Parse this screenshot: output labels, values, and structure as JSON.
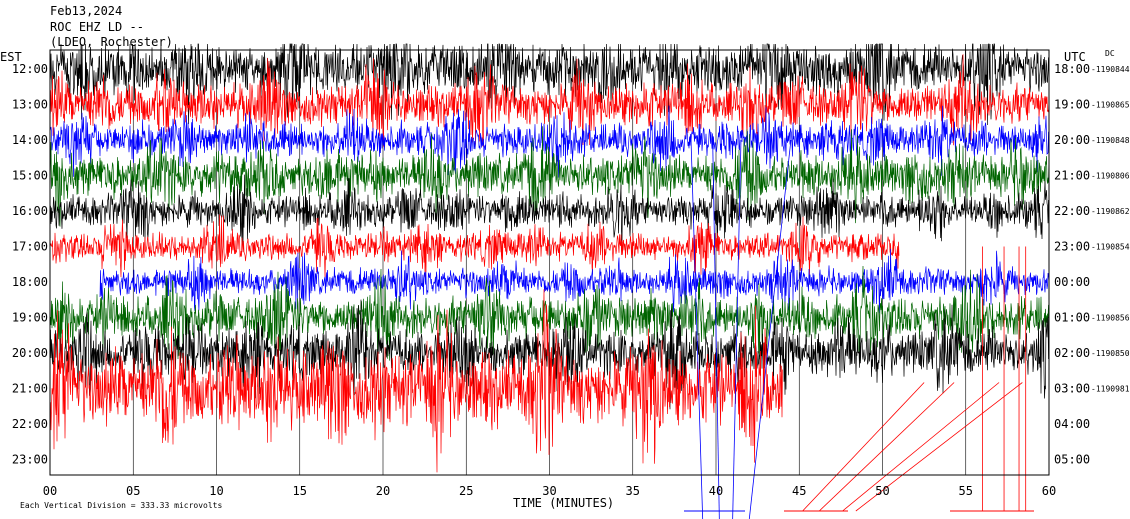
{
  "header": {
    "date": "Feb13,2024",
    "channel": "ROC EHZ LD --",
    "network": "(LDEO, Rochester)"
  },
  "chart_data": {
    "type": "helicorder",
    "xlabel": "TIME (MINUTES)",
    "left_axis_title": "EST",
    "right_axis_title": "UTC",
    "dc_label": "DC",
    "footnote": "Each Vertical Division =  333.33 microvolts",
    "x_ticks": [
      "00",
      "05",
      "10",
      "15",
      "20",
      "25",
      "30",
      "35",
      "40",
      "45",
      "50",
      "55",
      "60"
    ],
    "xlim": [
      0,
      60
    ],
    "trace_colors": [
      "#000000",
      "#ff0000",
      "#0000ff",
      "#006400"
    ],
    "rows": [
      {
        "est": "12:00",
        "utc": "18:00",
        "dc": "-1190844",
        "color": "#000000",
        "start": 0,
        "end": 60,
        "amp": 0.55
      },
      {
        "est": "13:00",
        "utc": "19:00",
        "dc": "-1190865",
        "color": "#ff0000",
        "start": 0,
        "end": 60,
        "amp": 0.45
      },
      {
        "est": "14:00",
        "utc": "20:00",
        "dc": "-1190848",
        "color": "#0000ff",
        "start": 0,
        "end": 60,
        "amp": 0.35
      },
      {
        "est": "15:00",
        "utc": "21:00",
        "dc": "-1190806",
        "color": "#006400",
        "start": 0,
        "end": 60,
        "amp": 0.45
      },
      {
        "est": "16:00",
        "utc": "22:00",
        "dc": "-1190862",
        "color": "#000000",
        "start": 0,
        "end": 60,
        "amp": 0.35
      },
      {
        "est": "17:00",
        "utc": "23:00",
        "dc": "-1190854",
        "color": "#ff0000",
        "start": 0,
        "end": 51,
        "amp": 0.3
      },
      {
        "est": "18:00",
        "utc": "00:00",
        "dc": "",
        "color": "#0000ff",
        "start": 3,
        "end": 60,
        "amp": 0.3
      },
      {
        "est": "19:00",
        "utc": "01:00",
        "dc": "-1190856",
        "color": "#006400",
        "start": 0,
        "end": 60,
        "amp": 0.45
      },
      {
        "est": "20:00",
        "utc": "02:00",
        "dc": "-1190850",
        "color": "#000000",
        "start": 0,
        "end": 60,
        "amp": 0.5
      },
      {
        "est": "21:00",
        "utc": "03:00",
        "dc": "-1190981",
        "color": "#ff0000",
        "start": 0,
        "end": 44,
        "amp": 0.8
      },
      {
        "est": "22:00",
        "utc": "04:00",
        "dc": "",
        "color": "#000000",
        "start": 0,
        "end": 0,
        "amp": 0
      },
      {
        "est": "23:00",
        "utc": "05:00",
        "dc": "",
        "color": "#000000",
        "start": 0,
        "end": 0,
        "amp": 0
      }
    ]
  }
}
